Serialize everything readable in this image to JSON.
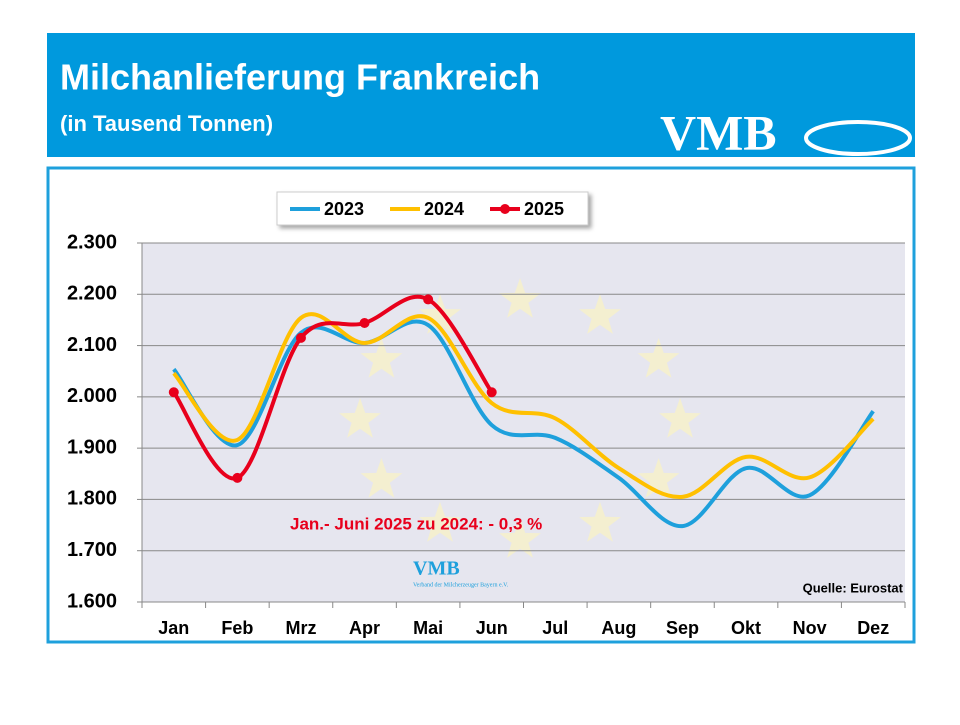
{
  "chart_data": {
    "type": "line",
    "title": "Milchanlieferung Frankreich",
    "subtitle": "(in Tausend Tonnen)",
    "categories": [
      "Jan",
      "Feb",
      "Mrz",
      "Apr",
      "Mai",
      "Jun",
      "Jul",
      "Aug",
      "Sep",
      "Okt",
      "Nov",
      "Dez"
    ],
    "series": [
      {
        "name": "2023",
        "color": "#1ea0dc",
        "markers": false,
        "values": [
          2054,
          1906,
          2125,
          2105,
          2140,
          1945,
          1920,
          1842,
          1748,
          1861,
          1808,
          1972
        ]
      },
      {
        "name": "2024",
        "color": "#ffc000",
        "markers": false,
        "values": [
          2046,
          1916,
          2154,
          2105,
          2154,
          1988,
          1958,
          1861,
          1805,
          1883,
          1843,
          1957
        ]
      },
      {
        "name": "2025",
        "color": "#e8001c",
        "markers": true,
        "values": [
          2009,
          1842,
          2115,
          2144,
          2190,
          2009,
          null,
          null,
          null,
          null,
          null,
          null
        ]
      }
    ],
    "ylim": [
      1600,
      2300
    ],
    "yticks": [
      {
        "value": 1600,
        "label": "1.600"
      },
      {
        "value": 1700,
        "label": "1.700"
      },
      {
        "value": 1800,
        "label": "1.800"
      },
      {
        "value": 1900,
        "label": "1.900"
      },
      {
        "value": 2000,
        "label": "2.000"
      },
      {
        "value": 2100,
        "label": "2.100"
      },
      {
        "value": 2200,
        "label": "2.200"
      },
      {
        "value": 2300,
        "label": "2.300"
      }
    ],
    "grid": true,
    "legend": "top",
    "annotations": [
      "Jan.- Juni 2025 zu 2024: - 0,3 %",
      "Quelle: Eurostat"
    ]
  },
  "logo": {
    "text": "VMB",
    "tagline": "Verband der Milcherzeuger Bayern e.V."
  }
}
